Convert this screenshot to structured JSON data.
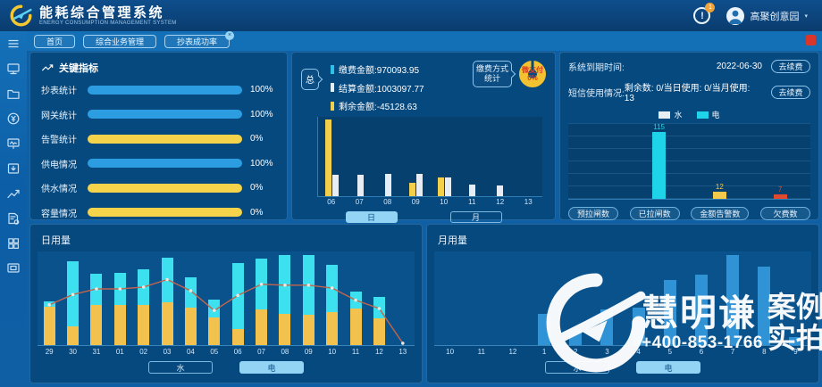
{
  "header": {
    "title": "能耗综合管理系统",
    "subtitle": "ENERGY CONSUMPTION MANAGEMENT SYSTEM",
    "alert_glyph": "!",
    "badge": "1",
    "user": "高聚创意园",
    "caret": "▾"
  },
  "tabs": [
    {
      "label": "首页"
    },
    {
      "label": "综合业务管理"
    },
    {
      "label": "抄表成功率",
      "badge": "×"
    }
  ],
  "sidebar_icons": [
    "menu",
    "dashboard",
    "folder",
    "billing-history",
    "meter-screen",
    "collect-inbox",
    "trend-chart",
    "report-settings",
    "apps-grid",
    "terminal-screen"
  ],
  "key_indicators": {
    "title": "关键指标",
    "rows": [
      {
        "label": "抄表统计",
        "percent": "100%",
        "color": "#2D9DE2"
      },
      {
        "label": "网关统计",
        "percent": "100%",
        "color": "#2D9DE2"
      },
      {
        "label": "告警统计",
        "percent": "0%",
        "color": "#F5D44C"
      },
      {
        "label": "供电情况",
        "percent": "100%",
        "color": "#2D9DE2"
      },
      {
        "label": "供水情况",
        "percent": "0%",
        "color": "#F5D44C"
      },
      {
        "label": "容量情况",
        "percent": "0%",
        "color": "#F5D44C"
      }
    ]
  },
  "payment": {
    "total_bubble": "总",
    "legend": [
      {
        "label": "缴费金额:970093.95",
        "color": "#2FC2E8"
      },
      {
        "label": "结算金额:1003097.77",
        "color": "#E6EDF4"
      },
      {
        "label": "剩余金额:-45128.63",
        "color": "#F2D04B"
      }
    ],
    "method_bubble": "缴费方式统计",
    "donut": {
      "center_line1": "微支付",
      "center_line2": "0%",
      "ring_color": "#F2C230",
      "text_color": "#E03A2A"
    },
    "chart": {
      "type": "bar",
      "categories": [
        "06",
        "07",
        "08",
        "09",
        "10",
        "11",
        "12",
        "13"
      ],
      "series": [
        {
          "name": "缴费金额",
          "color": "#F2D04B",
          "values": [
            97,
            0,
            0,
            17,
            24,
            0,
            0,
            0
          ]
        },
        {
          "name": "结算金额",
          "color": "#E6EDF4",
          "values": [
            27,
            27,
            28,
            28,
            24,
            15,
            13,
            0
          ]
        }
      ],
      "unit": "percent-of-plot-height"
    },
    "buttons": [
      {
        "label": "日",
        "active": true
      },
      {
        "label": "月",
        "active": false
      }
    ]
  },
  "system": {
    "expiry_label": "系统到期时间:",
    "expiry_value": "2022-06-30",
    "renew_label": "去续费",
    "sms_label": "短信使用情况:",
    "sms_value": "剩余数: 0/当日使用: 0/当月使用: 13",
    "renew_label2": "去续费",
    "legend": [
      {
        "label": "水",
        "color": "#E6EEF5"
      },
      {
        "label": "电",
        "color": "#1FD4E8"
      }
    ],
    "chart": {
      "type": "bar",
      "categories": [
        "预拉闸数",
        "已拉闸数",
        "金额告警数",
        "欠费数"
      ],
      "values": [
        0,
        115,
        12,
        7
      ],
      "colors": [
        "#1FD4E8",
        "#1FD4E8",
        "#F2C94C",
        "#E0492E"
      ],
      "ylim": [
        0,
        130
      ],
      "grid": true
    },
    "buttons": [
      "预拉闸数",
      "已拉闸数",
      "金额告警数",
      "欠费数"
    ]
  },
  "daily": {
    "title": "日用量",
    "chart_data": {
      "type": "stacked-bar-line",
      "categories": [
        "29",
        "30",
        "31",
        "01",
        "02",
        "03",
        "04",
        "05",
        "06",
        "07",
        "08",
        "09",
        "10",
        "11",
        "12",
        "13"
      ],
      "series": [
        {
          "name": "水(黄)",
          "color": "#F2C14E",
          "values": [
            41,
            20,
            43,
            43,
            43,
            46,
            40,
            30,
            17,
            38,
            33,
            32,
            35,
            39,
            29,
            0
          ]
        },
        {
          "name": "电(青)",
          "color": "#3CE0EE",
          "values": [
            6,
            70,
            33,
            34,
            38,
            47,
            32,
            19,
            71,
            54,
            63,
            64,
            51,
            18,
            22,
            0
          ]
        }
      ],
      "line": {
        "name": "趋势",
        "color": "#C2654C",
        "marker_color": "#F0E6E0",
        "values": [
          43,
          54,
          60,
          60,
          62,
          70,
          58,
          37,
          53,
          65,
          64,
          64,
          61,
          48,
          39,
          2
        ]
      },
      "unit": "percent-of-plot-height"
    },
    "buttons": [
      {
        "label": "水",
        "active": false
      },
      {
        "label": "电",
        "active": true
      }
    ]
  },
  "monthly": {
    "title": "月用量",
    "chart_data": {
      "type": "bar",
      "categories": [
        "10",
        "11",
        "12",
        "1",
        "2",
        "3",
        "4",
        "5",
        "6",
        "7",
        "8",
        "9"
      ],
      "values": [
        0,
        0,
        0,
        33,
        16,
        38,
        40,
        70,
        75,
        96,
        84,
        9
      ],
      "color": "#2F93D6",
      "unit": "percent-of-plot-height"
    },
    "buttons": [
      {
        "label": "水",
        "active": false
      },
      {
        "label": "电",
        "active": true
      }
    ]
  },
  "watermark": {
    "brand": "慧明谦",
    "tag1": "案例",
    "tag2": "实拍",
    "phone": "+400-853-1766"
  }
}
